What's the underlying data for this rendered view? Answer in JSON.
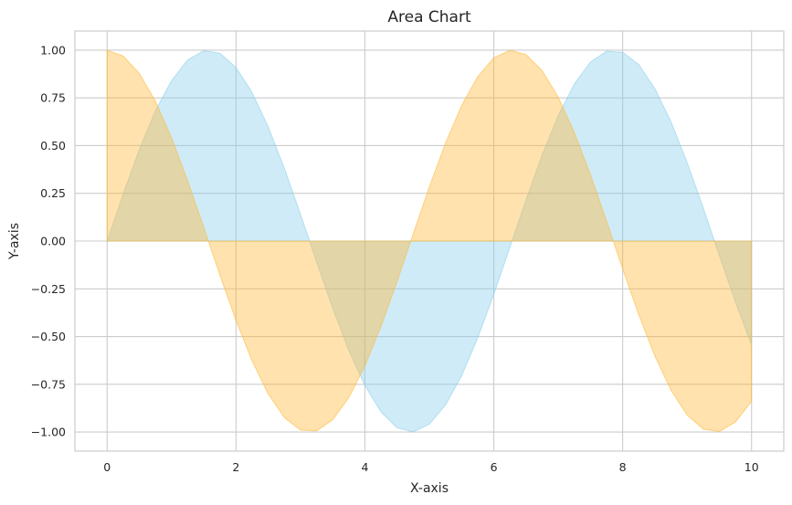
{
  "chart_data": {
    "type": "area",
    "title": "Area Chart",
    "xlabel": "X-axis",
    "ylabel": "Y-axis",
    "xlim": [
      -0.5,
      10.5
    ],
    "ylim": [
      -1.1,
      1.1
    ],
    "xticks": [
      0,
      2,
      4,
      6,
      8,
      10
    ],
    "xtick_labels": [
      "0",
      "2",
      "4",
      "6",
      "8",
      "10"
    ],
    "yticks": [
      -1.0,
      -0.75,
      -0.5,
      -0.25,
      0.0,
      0.25,
      0.5,
      0.75,
      1.0
    ],
    "ytick_labels": [
      "−1.00",
      "−0.75",
      "−0.50",
      "−0.25",
      "0.00",
      "0.25",
      "0.50",
      "0.75",
      "1.00"
    ],
    "grid": true,
    "x": [
      0.0,
      0.25,
      0.5,
      0.75,
      1.0,
      1.25,
      1.5,
      1.75,
      2.0,
      2.25,
      2.5,
      2.75,
      3.0,
      3.25,
      3.5,
      3.75,
      4.0,
      4.25,
      4.5,
      4.75,
      5.0,
      5.25,
      5.5,
      5.75,
      6.0,
      6.25,
      6.5,
      6.75,
      7.0,
      7.25,
      7.5,
      7.75,
      8.0,
      8.25,
      8.5,
      8.75,
      9.0,
      9.25,
      9.5,
      9.75,
      10.0
    ],
    "series": [
      {
        "color": "#87ceeb",
        "values": [
          0.0,
          0.247,
          0.479,
          0.682,
          0.841,
          0.949,
          0.997,
          0.984,
          0.909,
          0.778,
          0.598,
          0.382,
          0.141,
          -0.108,
          -0.351,
          -0.572,
          -0.757,
          -0.895,
          -0.978,
          -0.999,
          -0.959,
          -0.859,
          -0.706,
          -0.508,
          -0.279,
          -0.033,
          0.215,
          0.45,
          0.657,
          0.823,
          0.938,
          0.994,
          0.989,
          0.925,
          0.798,
          0.625,
          0.412,
          0.174,
          -0.075,
          -0.319,
          -0.544
        ]
      },
      {
        "color": "#ffb732",
        "values": [
          1.0,
          0.969,
          0.878,
          0.732,
          0.54,
          0.315,
          0.071,
          -0.178,
          -0.416,
          -0.628,
          -0.801,
          -0.924,
          -0.99,
          -0.994,
          -0.936,
          -0.82,
          -0.654,
          -0.446,
          -0.211,
          0.038,
          0.284,
          0.512,
          0.709,
          0.861,
          0.96,
          0.999,
          0.977,
          0.893,
          0.754,
          0.568,
          0.347,
          0.105,
          -0.146,
          -0.386,
          -0.602,
          -0.781,
          -0.911,
          -0.985,
          -0.997,
          -0.948,
          -0.839
        ]
      }
    ]
  }
}
